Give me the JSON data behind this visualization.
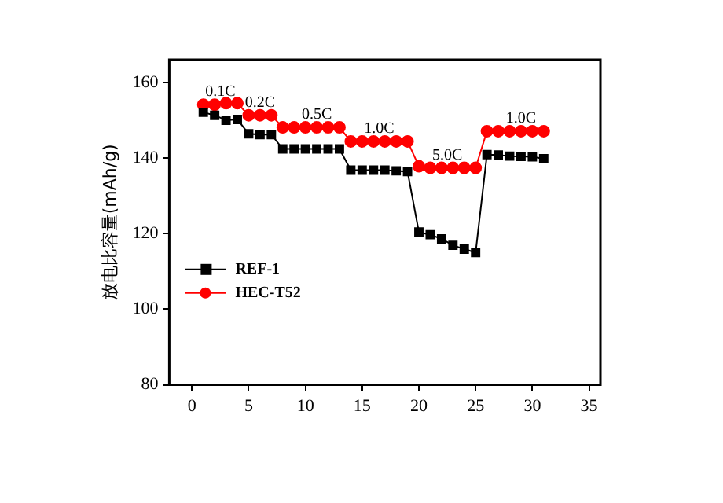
{
  "chart_data": {
    "type": "line",
    "ylabel": "放电比容量(mAh/g)",
    "xlim": [
      -2,
      36
    ],
    "xticks": [
      0,
      5,
      10,
      15,
      20,
      25,
      30,
      35
    ],
    "ylim": [
      80,
      166
    ],
    "yticks": [
      80,
      100,
      120,
      140,
      160
    ],
    "grid": false,
    "legend": "left",
    "line_style": "solid",
    "x": [
      1,
      2,
      3,
      4,
      5,
      6,
      7,
      8,
      9,
      10,
      11,
      12,
      13,
      14,
      15,
      16,
      17,
      18,
      19,
      20,
      21,
      22,
      23,
      24,
      25,
      26,
      27,
      28,
      29,
      30,
      31
    ],
    "series": [
      {
        "name": "REF-1",
        "color": "#000000",
        "marker": "square",
        "values": [
          152.1,
          151.3,
          150,
          150.2,
          146.4,
          146.2,
          146.2,
          142.4,
          142.4,
          142.4,
          142.4,
          142.4,
          142.4,
          136.8,
          136.8,
          136.8,
          136.8,
          136.6,
          136.4,
          120.4,
          119.7,
          118.6,
          116.9,
          115.9,
          115,
          140.9,
          140.8,
          140.5,
          140.4,
          140.3,
          139.8
        ]
      },
      {
        "name": "HEC-T52",
        "color": "#ff0000",
        "marker": "circle",
        "values": [
          154.1,
          154.1,
          154.5,
          154.5,
          151.3,
          151.3,
          151.3,
          148.1,
          148.1,
          148.1,
          148.1,
          148.1,
          148.1,
          144.4,
          144.4,
          144.4,
          144.4,
          144.4,
          144.4,
          137.8,
          137.4,
          137.4,
          137.4,
          137.4,
          137.4,
          147.1,
          147.1,
          147.1,
          147.1,
          147.1,
          147.1
        ]
      }
    ],
    "annotations": [
      {
        "text": "0.1C",
        "x": 2.5,
        "y": 157.5
      },
      {
        "text": "0.2C",
        "x": 6,
        "y": 154.6
      },
      {
        "text": "0.5C",
        "x": 11,
        "y": 151.5
      },
      {
        "text": "1.0C",
        "x": 16.5,
        "y": 147.7
      },
      {
        "text": "5.0C",
        "x": 22.5,
        "y": 140.7
      },
      {
        "text": "1.0C",
        "x": 29,
        "y": 150.5
      }
    ]
  }
}
